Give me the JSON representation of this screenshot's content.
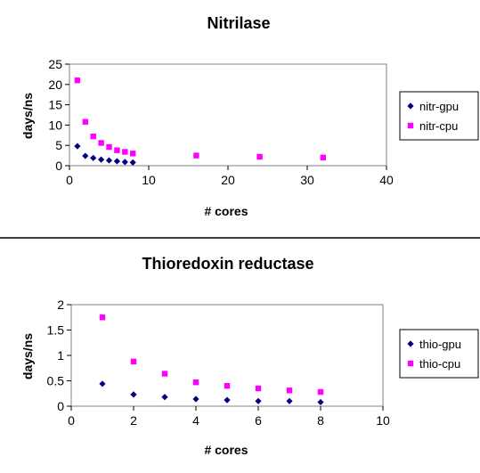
{
  "chart_data": [
    {
      "type": "scatter",
      "title": "Nitrilase",
      "xlabel": "# cores",
      "ylabel": "days/ns",
      "xlim": [
        0,
        40
      ],
      "ylim": [
        0,
        25
      ],
      "xticks": [
        0,
        10,
        20,
        30,
        40
      ],
      "yticks": [
        0,
        5,
        10,
        15,
        20,
        25
      ],
      "grid": false,
      "legend": "right",
      "series": [
        {
          "name": "nitr-gpu",
          "color": "#000080",
          "marker": "diamond",
          "x": [
            1,
            2,
            3,
            4,
            5,
            6,
            7,
            8
          ],
          "y": [
            4.8,
            2.4,
            1.9,
            1.5,
            1.3,
            1.1,
            0.9,
            0.8
          ]
        },
        {
          "name": "nitr-cpu",
          "color": "#ff00ff",
          "marker": "square",
          "x": [
            1,
            2,
            3,
            4,
            5,
            6,
            7,
            8,
            16,
            24,
            32
          ],
          "y": [
            21,
            10.8,
            7.2,
            5.6,
            4.6,
            3.8,
            3.4,
            3.0,
            2.5,
            2.2,
            2.0
          ]
        }
      ]
    },
    {
      "type": "scatter",
      "title": "Thioredoxin reductase",
      "xlabel": "# cores",
      "ylabel": "days/ns",
      "xlim": [
        0,
        10
      ],
      "ylim": [
        0,
        2
      ],
      "xticks": [
        0,
        2,
        4,
        6,
        8,
        10
      ],
      "yticks": [
        0,
        0.5,
        1,
        1.5,
        2
      ],
      "grid": false,
      "legend": "right",
      "series": [
        {
          "name": "thio-gpu",
          "color": "#000080",
          "marker": "diamond",
          "x": [
            1,
            2,
            3,
            4,
            5,
            6,
            7,
            8
          ],
          "y": [
            0.44,
            0.23,
            0.18,
            0.14,
            0.12,
            0.1,
            0.1,
            0.08
          ]
        },
        {
          "name": "thio-cpu",
          "color": "#ff00ff",
          "marker": "square",
          "x": [
            1,
            2,
            3,
            4,
            5,
            6,
            7,
            8
          ],
          "y": [
            1.75,
            0.88,
            0.64,
            0.47,
            0.4,
            0.35,
            0.31,
            0.28
          ]
        }
      ]
    }
  ]
}
